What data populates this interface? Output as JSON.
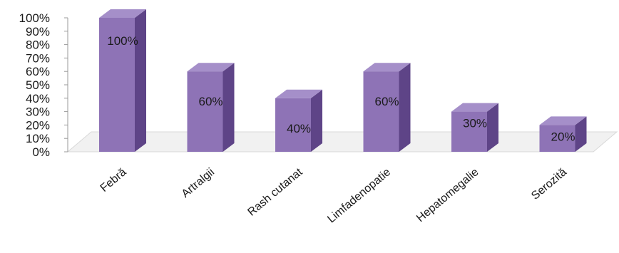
{
  "chart_data": {
    "type": "bar",
    "style": "3d-column",
    "title": "",
    "xlabel": "",
    "ylabel": "",
    "categories": [
      "Febră",
      "Artralgii",
      "Rash cutanat",
      "Limfadenopatie",
      "Hepatomegalie",
      "Serozită"
    ],
    "values": [
      100,
      60,
      40,
      60,
      30,
      20
    ],
    "data_labels": [
      "100%",
      "60%",
      "40%",
      "60%",
      "30%",
      "20%"
    ],
    "ylim": [
      0,
      100
    ],
    "y_ticks": [
      "0%",
      "10%",
      "20%",
      "30%",
      "40%",
      "50%",
      "60%",
      "70%",
      "80%",
      "90%",
      "100%"
    ],
    "grid": false,
    "legend": "none",
    "colors": {
      "bar_front": "#8e73b6",
      "bar_top": "#a58fc9",
      "bar_side": "#5e4487",
      "floor": "#f1f1f1",
      "axis": "#9a9a9a"
    }
  }
}
